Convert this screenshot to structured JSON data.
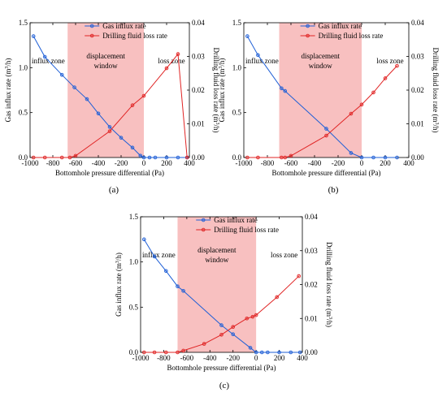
{
  "chart_data": [
    {
      "panel_label": "(a)",
      "type": "line",
      "xlabel": "Bottomhole pressure differential (Pa)",
      "ylabel_left": "Gas influx rate (m3/h)",
      "ylabel_right": "Drilling fluid loss rate (m3/h)",
      "xlim": [
        -1000,
        400
      ],
      "ylim_left": [
        0,
        1.5
      ],
      "ylim_right": [
        0,
        0.04
      ],
      "x_ticks": [
        -1000,
        -800,
        -600,
        -400,
        -200,
        0,
        200,
        400
      ],
      "y_ticks_left": [
        0.0,
        0.5,
        1.0,
        1.5
      ],
      "y_ticks_right": [
        0.0,
        0.01,
        0.02,
        0.03,
        0.04
      ],
      "window": [
        -670,
        0
      ],
      "zones": {
        "influx": "influx zone",
        "displacement_line1": "displacement",
        "displacement_line2": "window",
        "loss": "loss zone"
      },
      "series": [
        {
          "name": "Gas influx rate",
          "color": "#1f5fd6",
          "axis": "left",
          "x": [
            -970,
            -870,
            -720,
            -610,
            -500,
            -400,
            -300,
            -200,
            -100,
            -30,
            0,
            50,
            100,
            200,
            300,
            380
          ],
          "y": [
            1.35,
            1.12,
            0.92,
            0.78,
            0.65,
            0.49,
            0.34,
            0.22,
            0.11,
            0.02,
            0.0,
            0.0,
            0.0,
            0.0,
            0.0,
            0.0
          ]
        },
        {
          "name": "Drilling fluid loss rate",
          "color": "#e02424",
          "axis": "right",
          "x": [
            -970,
            -870,
            -720,
            -650,
            -600,
            -300,
            -100,
            0,
            200,
            300,
            380
          ],
          "y": [
            0.0,
            0.0,
            0.0,
            0.0,
            0.0005,
            0.0078,
            0.0155,
            0.0183,
            0.0265,
            0.0307,
            0.0
          ]
        }
      ]
    },
    {
      "panel_label": "(b)",
      "type": "line",
      "xlabel": "Bottomhole pressure differential (Pa)",
      "ylabel_left": "Gas influx rate (m3/h)",
      "ylabel_right": "Drilling fluid loss rate (m3/h)",
      "xlim": [
        -1000,
        400
      ],
      "ylim_left": [
        0,
        1.5
      ],
      "ylim_right": [
        0,
        0.04
      ],
      "x_ticks": [
        -1000,
        -800,
        -600,
        -400,
        -200,
        0,
        200,
        400
      ],
      "y_ticks_left": [
        0.0,
        0.5,
        1.0,
        1.5
      ],
      "y_ticks_right": [
        0.0,
        0.01,
        0.02,
        0.03,
        0.04
      ],
      "window": [
        -700,
        0
      ],
      "zones": {
        "influx": "influx zone",
        "displacement_line1": "displacement",
        "displacement_line2": "window",
        "loss": "loss zone"
      },
      "series": [
        {
          "name": "Gas influx rate",
          "color": "#1f5fd6",
          "axis": "left",
          "x": [
            -970,
            -880,
            -680,
            -650,
            -300,
            -90,
            0,
            100,
            200,
            300
          ],
          "y": [
            1.35,
            1.14,
            0.77,
            0.74,
            0.32,
            0.05,
            0.0,
            0.0,
            0.0,
            0.0
          ]
        },
        {
          "name": "Drilling fluid loss rate",
          "color": "#e02424",
          "axis": "right",
          "x": [
            -970,
            -880,
            -680,
            -650,
            -600,
            -300,
            -90,
            0,
            100,
            200,
            300
          ],
          "y": [
            0.0,
            0.0,
            0.0,
            0.0,
            0.0005,
            0.0065,
            0.013,
            0.0157,
            0.0193,
            0.0235,
            0.0272
          ]
        }
      ]
    },
    {
      "panel_label": "(c)",
      "type": "line",
      "xlabel": "Bottomhole pressure differential (Pa)",
      "ylabel_left": "Gas influx rate (m3/h)",
      "ylabel_right": "Drilling fluid loss rate (m3/h)",
      "xlim": [
        -1000,
        400
      ],
      "ylim_left": [
        0,
        1.5
      ],
      "ylim_right": [
        0,
        0.04
      ],
      "x_ticks": [
        -1000,
        -800,
        -600,
        -400,
        -200,
        0,
        200,
        400
      ],
      "y_ticks_left": [
        0.0,
        0.5,
        1.0,
        1.5
      ],
      "y_ticks_right": [
        0.0,
        0.01,
        0.02,
        0.03,
        0.04
      ],
      "window": [
        -680,
        0
      ],
      "zones": {
        "influx": "influx zone",
        "displacement_line1": "displacement",
        "displacement_line2": "window",
        "loss": "loss zone"
      },
      "series": [
        {
          "name": "Gas influx rate",
          "color": "#1f5fd6",
          "axis": "left",
          "x": [
            -970,
            -880,
            -780,
            -680,
            -630,
            -300,
            -200,
            -50,
            0,
            50,
            100,
            200,
            300,
            380
          ],
          "y": [
            1.25,
            1.06,
            0.9,
            0.73,
            0.68,
            0.3,
            0.2,
            0.05,
            0.0,
            0.0,
            0.0,
            0.0,
            0.0,
            0.0
          ]
        },
        {
          "name": "Drilling fluid loss rate",
          "color": "#e02424",
          "axis": "right",
          "x": [
            -970,
            -880,
            -780,
            -680,
            -630,
            -450,
            -300,
            -200,
            -80,
            -30,
            0,
            180,
            370
          ],
          "y": [
            0.0,
            0.0,
            0.0,
            0.0,
            0.0005,
            0.0025,
            0.0052,
            0.0075,
            0.01,
            0.0105,
            0.011,
            0.0163,
            0.0225
          ]
        }
      ]
    }
  ]
}
